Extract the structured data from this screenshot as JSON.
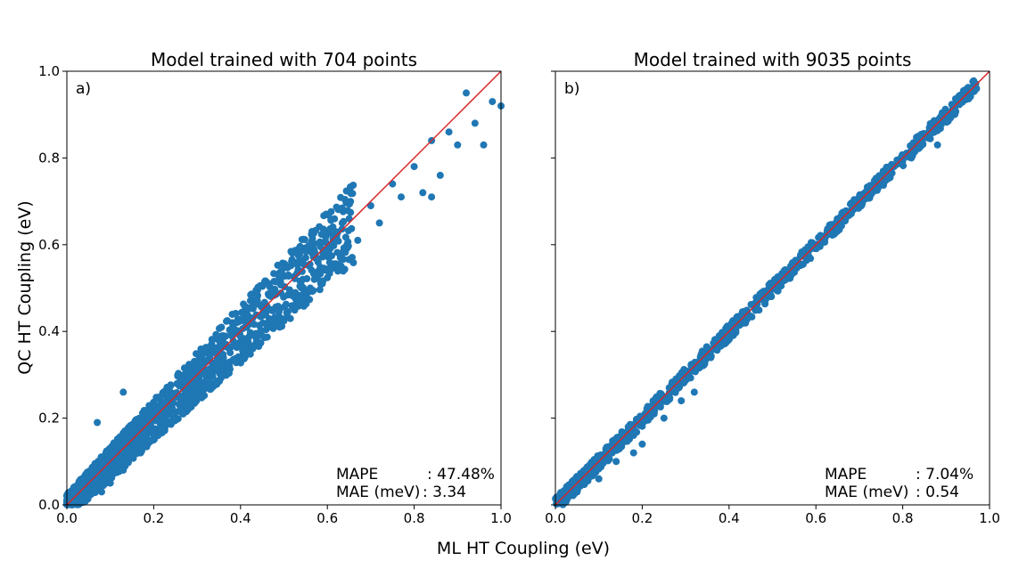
{
  "figure": {
    "xlabel": "ML HT Coupling (eV)",
    "ylabel": "QC HT Coupling (eV)",
    "point_color": "#1f77b4",
    "line_color": "#d62728"
  },
  "chart_data": [
    {
      "type": "scatter",
      "title": "Model trained with 704 points",
      "panel_label": "a)",
      "xlim": [
        0,
        1.0
      ],
      "ylim": [
        0,
        1.0
      ],
      "xticks": [
        "0.0",
        "0.2",
        "0.4",
        "0.6",
        "0.8",
        "1.0"
      ],
      "yticks": [
        "0.0",
        "0.2",
        "0.4",
        "0.6",
        "0.8",
        "1.0"
      ],
      "reference_line": "y = x",
      "grid": false,
      "metrics": [
        {
          "label": "MAPE",
          "value": ": 47.48%"
        },
        {
          "label": "MAE (meV)",
          "value": ":  3.34"
        }
      ],
      "spread": 0.11,
      "points": [
        [
          0.02,
          0.01
        ],
        [
          0.03,
          0.04
        ],
        [
          0.05,
          0.02
        ],
        [
          0.06,
          0.08
        ],
        [
          0.08,
          0.03
        ],
        [
          0.09,
          0.12
        ],
        [
          0.1,
          0.05
        ],
        [
          0.12,
          0.15
        ],
        [
          0.13,
          0.08
        ],
        [
          0.15,
          0.18
        ],
        [
          0.17,
          0.12
        ],
        [
          0.19,
          0.22
        ],
        [
          0.21,
          0.16
        ],
        [
          0.23,
          0.26
        ],
        [
          0.25,
          0.2
        ],
        [
          0.27,
          0.3
        ],
        [
          0.29,
          0.24
        ],
        [
          0.31,
          0.34
        ],
        [
          0.33,
          0.27
        ],
        [
          0.35,
          0.38
        ],
        [
          0.37,
          0.31
        ],
        [
          0.39,
          0.42
        ],
        [
          0.41,
          0.34
        ],
        [
          0.43,
          0.46
        ],
        [
          0.45,
          0.39
        ],
        [
          0.47,
          0.5
        ],
        [
          0.49,
          0.43
        ],
        [
          0.51,
          0.53
        ],
        [
          0.53,
          0.47
        ],
        [
          0.55,
          0.57
        ],
        [
          0.57,
          0.52
        ],
        [
          0.59,
          0.58
        ],
        [
          0.61,
          0.6
        ],
        [
          0.63,
          0.57
        ],
        [
          0.65,
          0.66
        ],
        [
          0.67,
          0.61
        ],
        [
          0.7,
          0.69
        ],
        [
          0.72,
          0.65
        ],
        [
          0.75,
          0.74
        ],
        [
          0.77,
          0.71
        ],
        [
          0.8,
          0.78
        ],
        [
          0.82,
          0.72
        ],
        [
          0.84,
          0.84
        ],
        [
          0.86,
          0.76
        ],
        [
          0.88,
          0.86
        ],
        [
          0.9,
          0.83
        ],
        [
          0.92,
          0.95
        ],
        [
          0.94,
          0.88
        ],
        [
          0.96,
          0.83
        ],
        [
          0.98,
          0.93
        ],
        [
          1.0,
          0.92
        ],
        [
          0.07,
          0.19
        ],
        [
          0.13,
          0.26
        ],
        [
          0.84,
          0.71
        ]
      ]
    },
    {
      "type": "scatter",
      "title": "Model trained with 9035 points",
      "panel_label": "b)",
      "xlim": [
        0,
        1.0
      ],
      "ylim": [
        0,
        1.0
      ],
      "xticks": [
        "0.0",
        "0.2",
        "0.4",
        "0.6",
        "0.8",
        "1.0"
      ],
      "yticks": [
        "0.0",
        "0.2",
        "0.4",
        "0.6",
        "0.8",
        "1.0"
      ],
      "reference_line": "y = x",
      "grid": false,
      "metrics": [
        {
          "label": "MAPE",
          "value": ":  7.04%"
        },
        {
          "label": "MAE (meV)",
          "value": ":  0.54"
        }
      ],
      "spread": 0.018,
      "points": [
        [
          0.01,
          0.01
        ],
        [
          0.02,
          0.03
        ],
        [
          0.04,
          0.05
        ],
        [
          0.06,
          0.06
        ],
        [
          0.08,
          0.09
        ],
        [
          0.1,
          0.1
        ],
        [
          0.12,
          0.13
        ],
        [
          0.14,
          0.14
        ],
        [
          0.16,
          0.16
        ],
        [
          0.18,
          0.18
        ],
        [
          0.2,
          0.2
        ],
        [
          0.22,
          0.22
        ],
        [
          0.25,
          0.25
        ],
        [
          0.28,
          0.28
        ],
        [
          0.31,
          0.31
        ],
        [
          0.34,
          0.34
        ],
        [
          0.37,
          0.37
        ],
        [
          0.4,
          0.4
        ],
        [
          0.43,
          0.43
        ],
        [
          0.46,
          0.46
        ],
        [
          0.5,
          0.5
        ],
        [
          0.54,
          0.54
        ],
        [
          0.58,
          0.58
        ],
        [
          0.62,
          0.62
        ],
        [
          0.66,
          0.66
        ],
        [
          0.7,
          0.7
        ],
        [
          0.74,
          0.74
        ],
        [
          0.78,
          0.78
        ],
        [
          0.82,
          0.81
        ],
        [
          0.86,
          0.86
        ],
        [
          0.9,
          0.9
        ],
        [
          0.94,
          0.94
        ],
        [
          0.97,
          0.96
        ],
        [
          0.88,
          0.83
        ],
        [
          0.82,
          0.8
        ],
        [
          0.32,
          0.26
        ],
        [
          0.29,
          0.24
        ],
        [
          0.2,
          0.14
        ],
        [
          0.18,
          0.12
        ],
        [
          0.1,
          0.06
        ],
        [
          0.05,
          0.03
        ],
        [
          0.14,
          0.1
        ],
        [
          0.25,
          0.2
        ]
      ]
    }
  ]
}
